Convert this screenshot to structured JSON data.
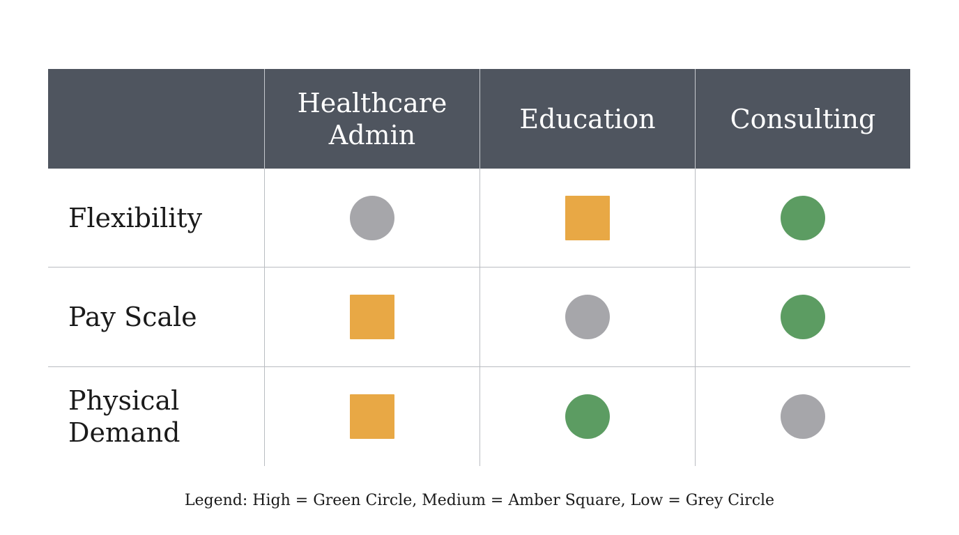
{
  "table": {
    "columns": [
      "",
      "Healthcare\nAdmin",
      "Education",
      "Consulting"
    ],
    "rows": [
      {
        "label": "Flexibility",
        "cells": [
          {
            "level": "Low",
            "shape": "circle",
            "color": "#a6a6aa"
          },
          {
            "level": "Medium",
            "shape": "square",
            "color": "#e8a845"
          },
          {
            "level": "High",
            "shape": "circle",
            "color": "#5c9c62"
          }
        ]
      },
      {
        "label": "Pay Scale",
        "cells": [
          {
            "level": "Medium",
            "shape": "square",
            "color": "#e8a845"
          },
          {
            "level": "Low",
            "shape": "circle",
            "color": "#a6a6aa"
          },
          {
            "level": "High",
            "shape": "circle",
            "color": "#5c9c62"
          }
        ]
      },
      {
        "label": "Physical\nDemand",
        "cells": [
          {
            "level": "Medium",
            "shape": "square",
            "color": "#e8a845"
          },
          {
            "level": "High",
            "shape": "circle",
            "color": "#5c9c62"
          },
          {
            "level": "Low",
            "shape": "circle",
            "color": "#a6a6aa"
          }
        ]
      }
    ]
  },
  "legend": "Legend: High = Green Circle, Medium = Amber Square, Low = Grey Circle",
  "colors": {
    "header_bg": "#4f555f",
    "high": "#5c9c62",
    "medium": "#e8a845",
    "low": "#a6a6aa"
  }
}
